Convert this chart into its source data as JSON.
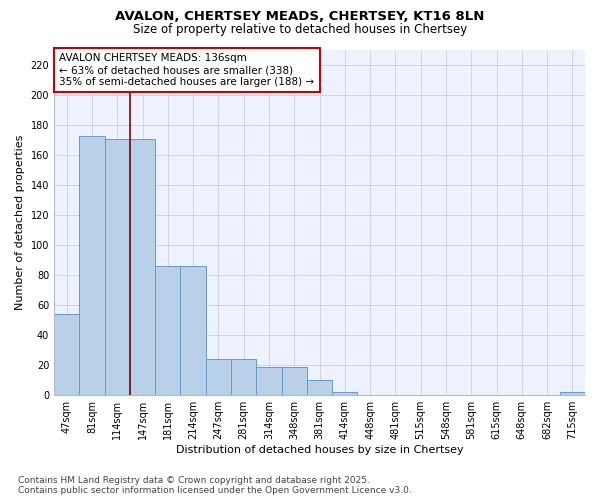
{
  "title_line1": "AVALON, CHERTSEY MEADS, CHERTSEY, KT16 8LN",
  "title_line2": "Size of property relative to detached houses in Chertsey",
  "xlabel": "Distribution of detached houses by size in Chertsey",
  "ylabel": "Number of detached properties",
  "categories": [
    "47sqm",
    "81sqm",
    "114sqm",
    "147sqm",
    "181sqm",
    "214sqm",
    "247sqm",
    "281sqm",
    "314sqm",
    "348sqm",
    "381sqm",
    "414sqm",
    "448sqm",
    "481sqm",
    "515sqm",
    "548sqm",
    "581sqm",
    "615sqm",
    "648sqm",
    "682sqm",
    "715sqm"
  ],
  "values": [
    54,
    173,
    171,
    171,
    86,
    86,
    24,
    24,
    19,
    19,
    10,
    2,
    0,
    0,
    0,
    0,
    0,
    0,
    0,
    0,
    2
  ],
  "bar_color": "#b8d0e8",
  "bar_edge_color": "#6699cc",
  "vline_color": "#8b0000",
  "annotation_text": "AVALON CHERTSEY MEADS: 136sqm\n← 63% of detached houses are smaller (338)\n35% of semi-detached houses are larger (188) →",
  "annotation_box_color": "#cc0000",
  "ylim": [
    0,
    230
  ],
  "yticks": [
    0,
    20,
    40,
    60,
    80,
    100,
    120,
    140,
    160,
    180,
    200,
    220
  ],
  "background_color": "#eef2ff",
  "grid_color": "#c8cfe8",
  "footer": "Contains HM Land Registry data © Crown copyright and database right 2025.\nContains public sector information licensed under the Open Government Licence v3.0.",
  "title_fontsize": 9.5,
  "subtitle_fontsize": 8.5,
  "axis_label_fontsize": 8,
  "tick_fontsize": 7,
  "annotation_fontsize": 7.5,
  "footer_fontsize": 6.5
}
